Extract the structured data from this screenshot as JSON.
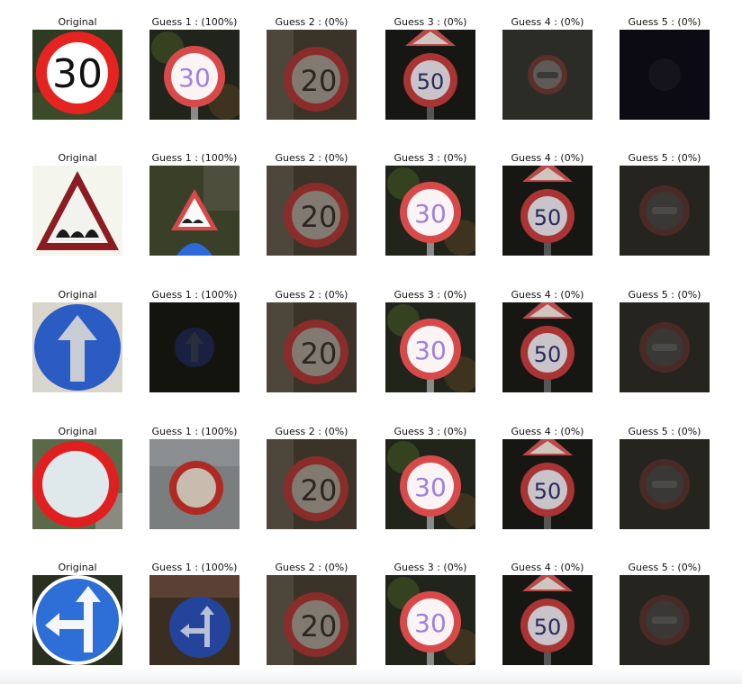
{
  "rows": [
    {
      "original": {
        "label": "Original",
        "image": "speed-limit-30-sign"
      },
      "guesses": [
        {
          "label": "Guess 1 : (100%)",
          "image": "speed-limit-30-sign"
        },
        {
          "label": "Guess 2 : (0%)",
          "image": "speed-limit-20-sign"
        },
        {
          "label": "Guess 3 : (0%)",
          "image": "speed-limit-50-sign"
        },
        {
          "label": "Guess 4 : (0%)",
          "image": "no-vehicles-sign"
        },
        {
          "label": "Guess 5 : (0%)",
          "image": "dark-sign"
        }
      ]
    },
    {
      "original": {
        "label": "Original",
        "image": "bumpy-road-sign"
      },
      "guesses": [
        {
          "label": "Guess 1 : (100%)",
          "image": "bumpy-road-sign"
        },
        {
          "label": "Guess 2 : (0%)",
          "image": "speed-limit-20-sign"
        },
        {
          "label": "Guess 3 : (0%)",
          "image": "speed-limit-30-sign"
        },
        {
          "label": "Guess 4 : (0%)",
          "image": "speed-limit-50-sign"
        },
        {
          "label": "Guess 5 : (0%)",
          "image": "no-passing-sign"
        }
      ]
    },
    {
      "original": {
        "label": "Original",
        "image": "ahead-only-sign"
      },
      "guesses": [
        {
          "label": "Guess 1 : (100%)",
          "image": "ahead-only-sign"
        },
        {
          "label": "Guess 2 : (0%)",
          "image": "speed-limit-20-sign"
        },
        {
          "label": "Guess 3 : (0%)",
          "image": "speed-limit-30-sign"
        },
        {
          "label": "Guess 4 : (0%)",
          "image": "speed-limit-50-sign"
        },
        {
          "label": "Guess 5 : (0%)",
          "image": "no-passing-sign"
        }
      ]
    },
    {
      "original": {
        "label": "Original",
        "image": "no-vehicles-sign"
      },
      "guesses": [
        {
          "label": "Guess 1 : (100%)",
          "image": "no-vehicles-sign"
        },
        {
          "label": "Guess 2 : (0%)",
          "image": "speed-limit-20-sign"
        },
        {
          "label": "Guess 3 : (0%)",
          "image": "speed-limit-30-sign"
        },
        {
          "label": "Guess 4 : (0%)",
          "image": "speed-limit-50-sign"
        },
        {
          "label": "Guess 5 : (0%)",
          "image": "no-passing-sign"
        }
      ]
    },
    {
      "original": {
        "label": "Original",
        "image": "go-straight-or-left-sign"
      },
      "guesses": [
        {
          "label": "Guess 1 : (100%)",
          "image": "go-straight-or-left-sign"
        },
        {
          "label": "Guess 2 : (0%)",
          "image": "speed-limit-20-sign"
        },
        {
          "label": "Guess 3 : (0%)",
          "image": "speed-limit-30-sign"
        },
        {
          "label": "Guess 4 : (0%)",
          "image": "speed-limit-50-sign"
        },
        {
          "label": "Guess 5 : (0%)",
          "image": "no-passing-sign"
        }
      ]
    }
  ]
}
